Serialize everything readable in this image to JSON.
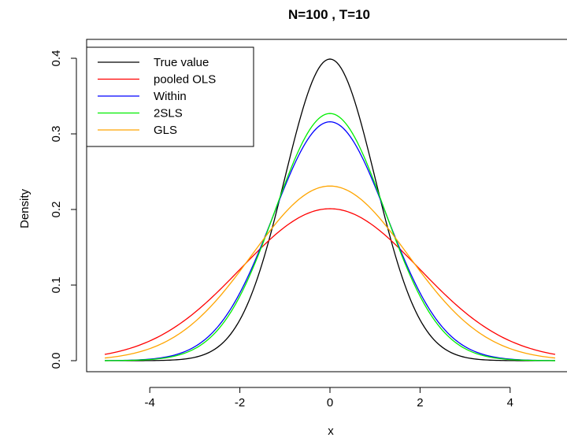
{
  "chart_data": {
    "type": "line",
    "title": "N=100 , T=10",
    "xlabel": "x",
    "ylabel": "Density",
    "xlim": [
      -5,
      5
    ],
    "ylim": [
      0,
      0.4
    ],
    "xticks": [
      "-4",
      "-2",
      "0",
      "2",
      "4"
    ],
    "yticks": [
      "0.0",
      "0.1",
      "0.2",
      "0.3",
      "0.4"
    ],
    "grid": false,
    "legend_position": "top-left",
    "series": [
      {
        "name": "True value",
        "color": "#000000",
        "mean": 0,
        "sd": 1.0,
        "peak": 0.399
      },
      {
        "name": "pooled OLS",
        "color": "#ff0000",
        "mean": 0,
        "sd": 1.98,
        "peak": 0.201
      },
      {
        "name": "Within",
        "color": "#0000ff",
        "mean": 0,
        "sd": 1.26,
        "peak": 0.316
      },
      {
        "name": "2SLS",
        "color": "#00ee00",
        "mean": 0,
        "sd": 1.22,
        "peak": 0.327
      },
      {
        "name": "GLS",
        "color": "#ffa500",
        "mean": 0,
        "sd": 1.73,
        "peak": 0.231
      }
    ]
  }
}
